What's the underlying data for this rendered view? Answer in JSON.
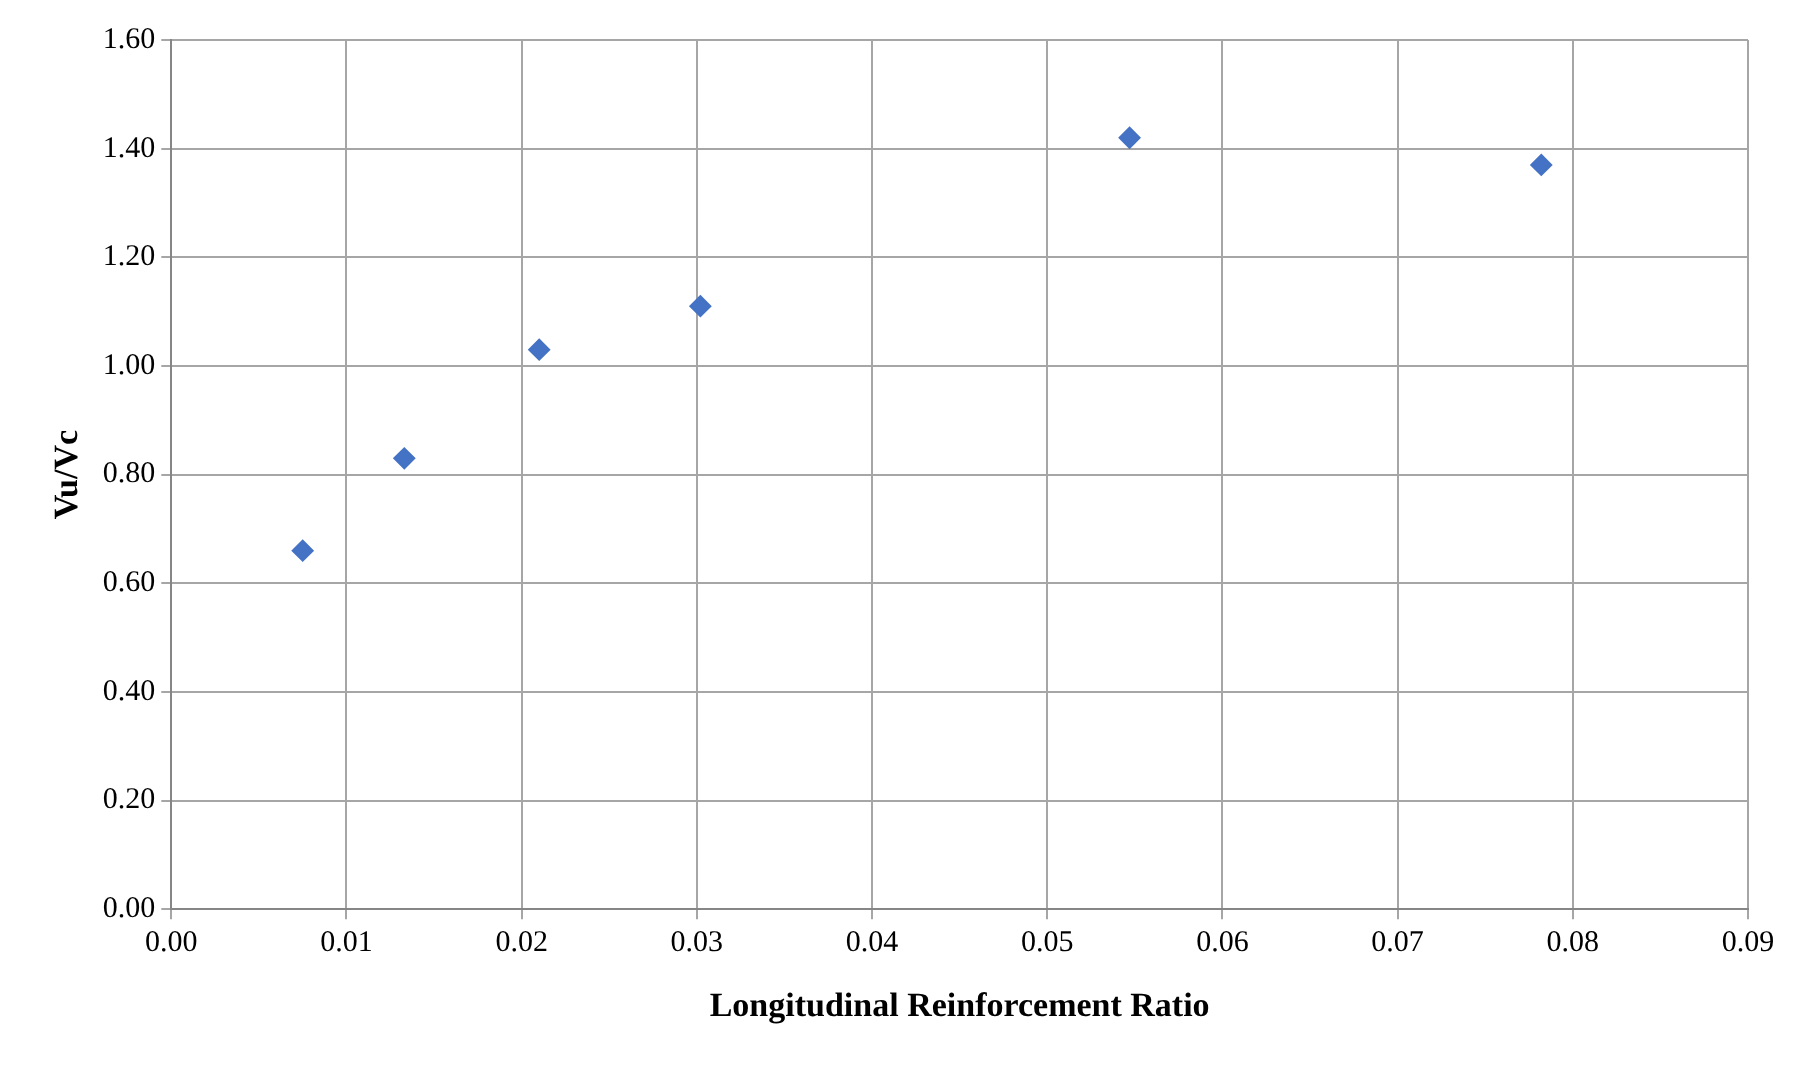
{
  "chart_data": {
    "type": "scatter",
    "xlabel": "Longitudinal Reinforcement Ratio",
    "ylabel": "Vu/Vc",
    "x": [
      0.0075,
      0.0133,
      0.021,
      0.0302,
      0.0547,
      0.0782
    ],
    "series": [
      {
        "color": "#4472c4",
        "values": [
          0.66,
          0.83,
          1.03,
          1.11,
          1.42,
          1.37
        ]
      }
    ],
    "xlim": [
      0,
      0.09
    ],
    "xticks": [
      {
        "value": 0,
        "label": "0.00"
      },
      {
        "value": 0.01,
        "label": "0.01"
      },
      {
        "value": 0.02,
        "label": "0.02"
      },
      {
        "value": 0.03,
        "label": "0.03"
      },
      {
        "value": 0.04,
        "label": "0.04"
      },
      {
        "value": 0.05,
        "label": "0.05"
      },
      {
        "value": 0.06,
        "label": "0.06"
      },
      {
        "value": 0.07,
        "label": "0.07"
      },
      {
        "value": 0.08,
        "label": "0.08"
      },
      {
        "value": 0.09,
        "label": "0.09"
      }
    ],
    "ylim": [
      0,
      1.6
    ],
    "yticks": [
      {
        "value": 0,
        "label": "0.00"
      },
      {
        "value": 0.2,
        "label": "0.20"
      },
      {
        "value": 0.4,
        "label": "0.40"
      },
      {
        "value": 0.6,
        "label": "0.60"
      },
      {
        "value": 0.8,
        "label": "0.80"
      },
      {
        "value": 1,
        "label": "1.00"
      },
      {
        "value": 1.2,
        "label": "1.20"
      },
      {
        "value": 1.4,
        "label": "1.40"
      },
      {
        "value": 1.6,
        "label": "1.60"
      }
    ],
    "grid": true,
    "legend": false,
    "marker": "diamond"
  }
}
